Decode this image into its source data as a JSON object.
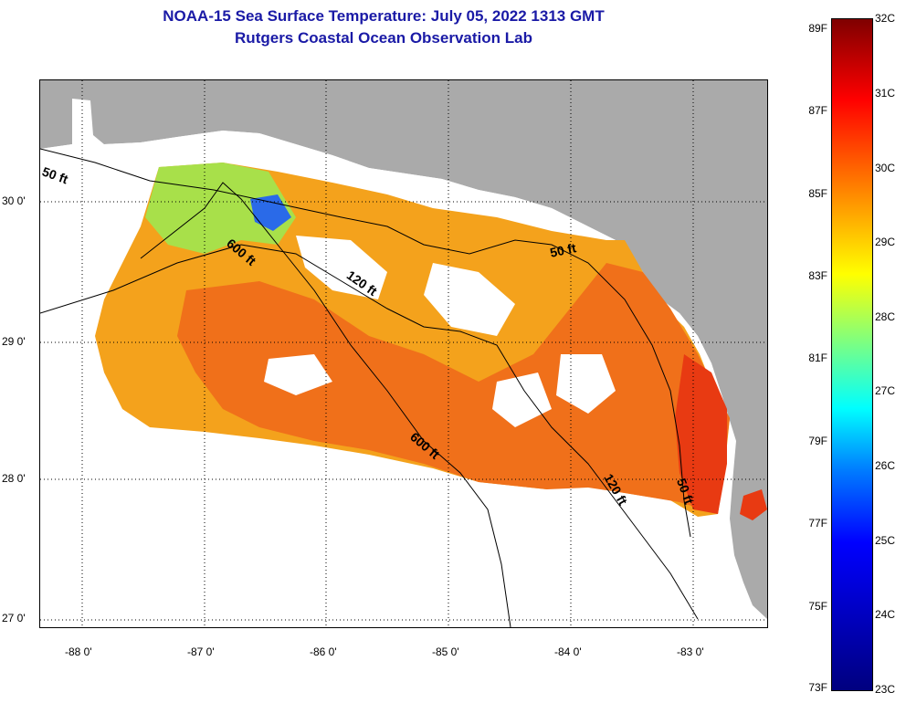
{
  "header": {
    "title": "NOAA-15 Sea Surface Temperature:  July 05, 2022 1313 GMT",
    "subtitle": "Rutgers Coastal Ocean Observation Lab"
  },
  "axes": {
    "longitude_labels": [
      "-88 0'",
      "-87 0'",
      "-86 0'",
      "-85 0'",
      "-84 0'",
      "-83 0'"
    ],
    "latitude_labels": [
      "30 0'",
      "29 0'",
      "28 0'",
      "27 0'"
    ]
  },
  "depth_contours": {
    "label_50": "50 ft",
    "label_120": "120 ft",
    "label_600": "600 ft"
  },
  "colorbar": {
    "fahrenheit": [
      "89F",
      "87F",
      "85F",
      "83F",
      "81F",
      "79F",
      "77F",
      "75F",
      "73F"
    ],
    "celsius": [
      "32C",
      "31C",
      "30C",
      "29C",
      "28C",
      "27C",
      "26C",
      "25C",
      "24C",
      "23C"
    ]
  },
  "colors": {
    "title": "#1a1aa6",
    "land": "#aaaaaa",
    "sst_warm": "#f06a10",
    "sst_hot": "#e83010",
    "sst_mid": "#f7b91a",
    "sst_cool": "#9ee03a",
    "sst_cold": "#2a6ae8"
  }
}
